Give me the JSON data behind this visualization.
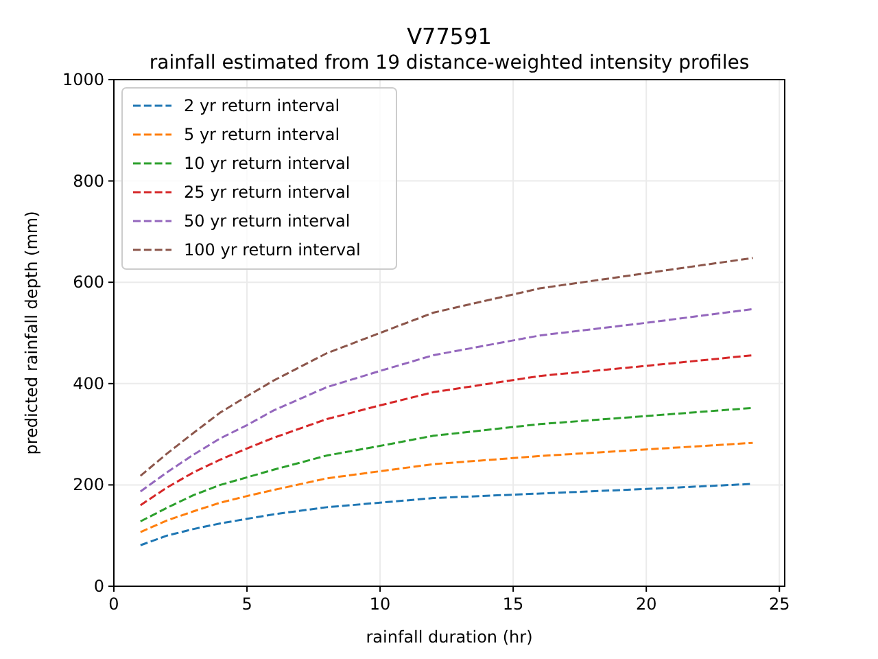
{
  "chart_data": {
    "type": "line",
    "title": "V77591",
    "subtitle": "rainfall estimated from 19 distance-weighted intensity profiles",
    "xlabel": "rainfall duration (hr)",
    "ylabel": "predicted rainfall depth (mm)",
    "x": [
      1,
      2,
      3,
      4,
      5,
      6,
      8,
      10,
      12,
      16,
      20,
      24
    ],
    "series": [
      {
        "name": "2 yr return interval",
        "color": "#1f77b4",
        "values": [
          81,
          100,
          113,
          124,
          133,
          142,
          156,
          165,
          174,
          183,
          192,
          202
        ]
      },
      {
        "name": "5 yr return interval",
        "color": "#ff7f0e",
        "values": [
          107,
          130,
          148,
          165,
          178,
          190,
          213,
          227,
          241,
          257,
          270,
          283
        ]
      },
      {
        "name": "10 yr return interval",
        "color": "#2ca02c",
        "values": [
          128,
          155,
          180,
          200,
          215,
          230,
          258,
          277,
          297,
          320,
          336,
          352
        ]
      },
      {
        "name": "25 yr return interval",
        "color": "#d62728",
        "values": [
          160,
          195,
          225,
          250,
          272,
          293,
          330,
          357,
          383,
          415,
          435,
          456
        ]
      },
      {
        "name": "50 yr return interval",
        "color": "#9467bd",
        "values": [
          187,
          225,
          260,
          292,
          318,
          347,
          393,
          425,
          456,
          495,
          520,
          547
        ]
      },
      {
        "name": "100 yr return interval",
        "color": "#8c564b",
        "values": [
          218,
          262,
          303,
          343,
          375,
          406,
          460,
          500,
          540,
          588,
          618,
          648
        ]
      }
    ],
    "xlim": [
      0,
      25.2
    ],
    "xticks": [
      0,
      5,
      10,
      15,
      20,
      25
    ],
    "ylim": [
      0,
      1000
    ],
    "yticks": [
      0,
      200,
      400,
      600,
      800,
      1000
    ],
    "grid": true,
    "legend": "top left",
    "line_style": "dashed",
    "marker": "none"
  }
}
